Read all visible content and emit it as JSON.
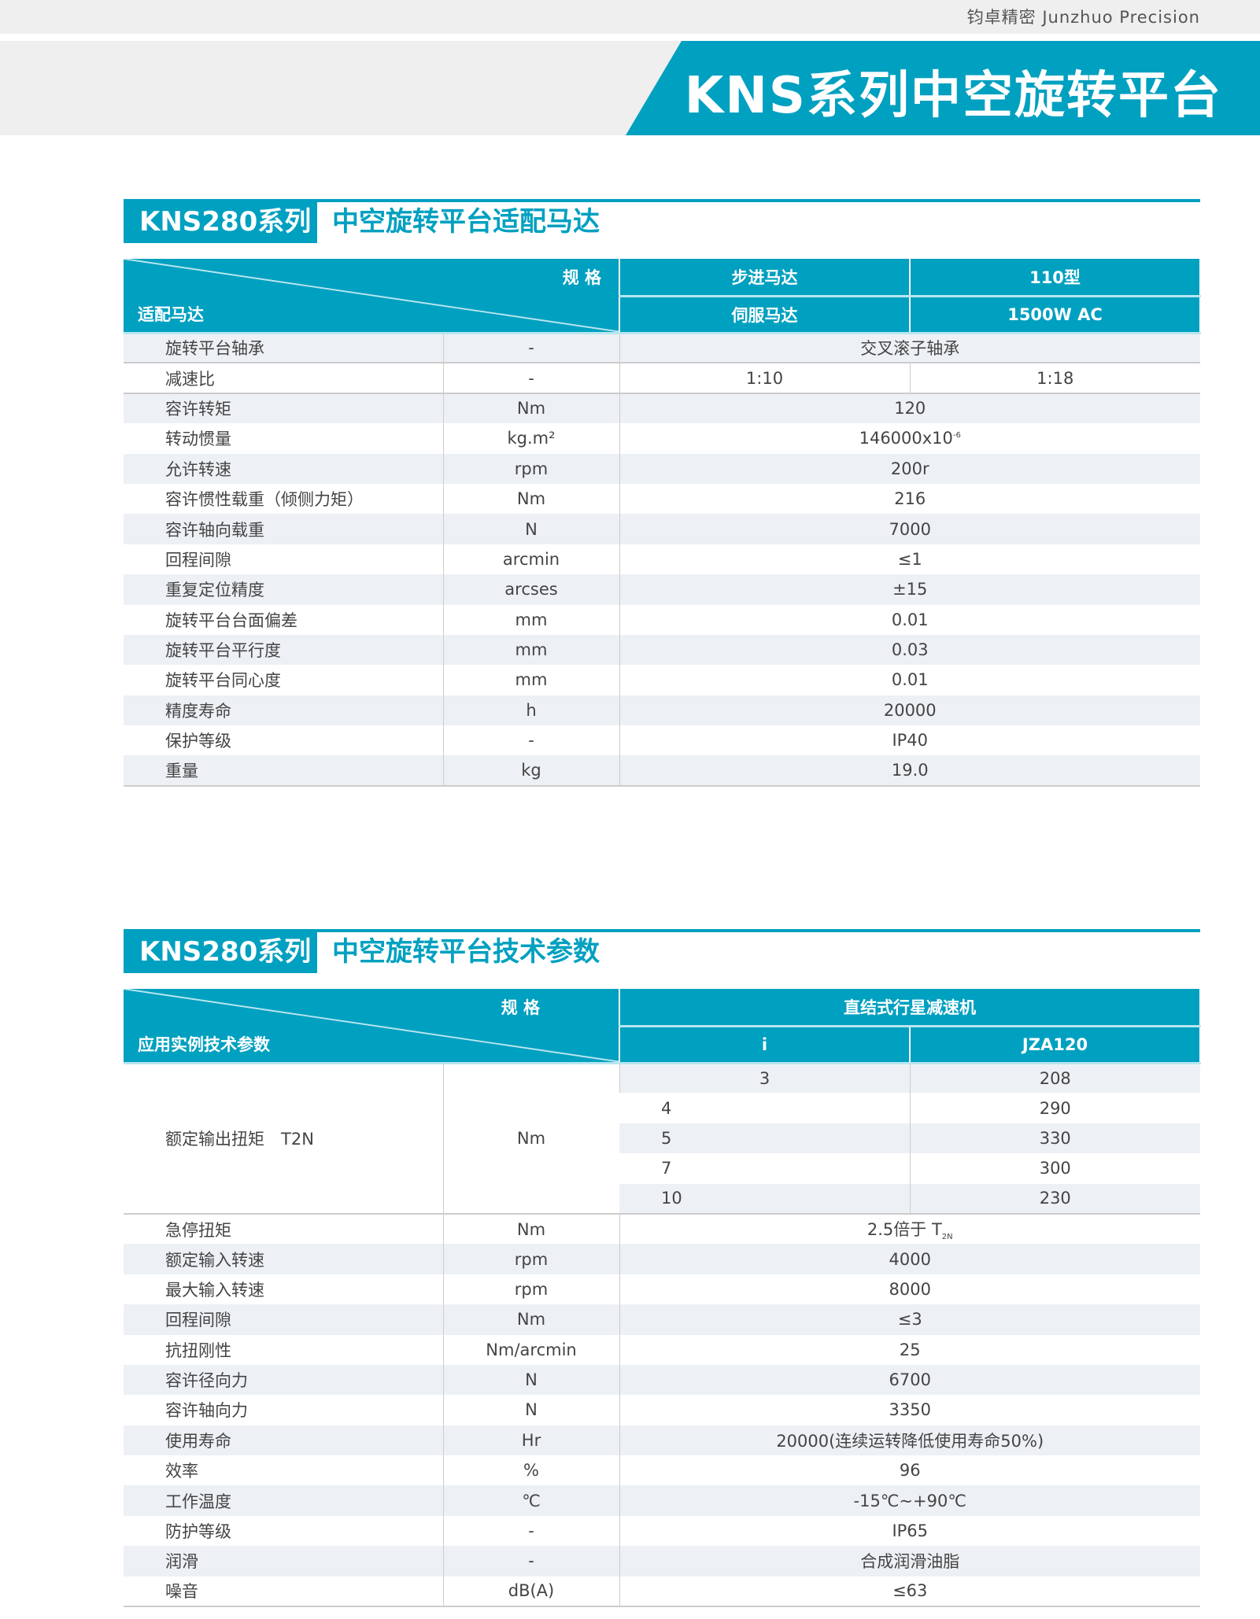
{
  "brand": "钧卓精密 Junzhuo Precision",
  "banner_title": "KNS系列中空旋转平台",
  "colors": {
    "accent": "#00a0c0",
    "stripe": "#edf1f5"
  },
  "motor": {
    "tag": "KNS280系列",
    "subtitle": "中空旋转平台适配马达",
    "header": {
      "spec": "规 格",
      "row_label": "适配马达",
      "c1r1": "步进马达",
      "c2r1": "110型",
      "c1r2": "伺服马达",
      "c2r2": "1500W AC"
    },
    "rows": [
      {
        "name": "旋转平台轴承",
        "unit": "-",
        "value": "交叉滚子轴承"
      },
      {
        "name": "减速比",
        "unit": "-",
        "v1": "1:10",
        "v2": "1:18"
      },
      {
        "name": "容许转矩",
        "unit": "Nm",
        "value": "120"
      },
      {
        "name": "转动惯量",
        "unit": "kg.m²",
        "value": "146000x10",
        "sup": "-6"
      },
      {
        "name": "允许转速",
        "unit": "rpm",
        "value": "200r"
      },
      {
        "name": "容许惯性载重（倾侧力矩）",
        "unit": "Nm",
        "value": "216"
      },
      {
        "name": "容许轴向载重",
        "unit": "N",
        "value": "7000"
      },
      {
        "name": "回程间隙",
        "unit": "arcmin",
        "value": "≤1"
      },
      {
        "name": "重复定位精度",
        "unit": "arcses",
        "value": "±15"
      },
      {
        "name": "旋转平台台面偏差",
        "unit": "mm",
        "value": "0.01"
      },
      {
        "name": "旋转平台平行度",
        "unit": "mm",
        "value": "0.03"
      },
      {
        "name": "旋转平台同心度",
        "unit": "mm",
        "value": "0.01"
      },
      {
        "name": "精度寿命",
        "unit": "h",
        "value": "20000"
      },
      {
        "name": "保护等级",
        "unit": "-",
        "value": "IP40"
      },
      {
        "name": "重量",
        "unit": "kg",
        "value": "19.0"
      }
    ]
  },
  "tech": {
    "tag": "KNS280系列",
    "subtitle": "中空旋转平台技术参数",
    "header": {
      "spec": "规 格",
      "row_label": "应用实例技术参数",
      "group": "直结式行星减速机",
      "c1": "i",
      "c2": "JZA120"
    },
    "torque": {
      "name": "额定输出扭矩　T2N",
      "unit": "Nm",
      "rows": [
        {
          "i": "3",
          "v": "208"
        },
        {
          "i": "4",
          "v": "290"
        },
        {
          "i": "5",
          "v": "330"
        },
        {
          "i": "7",
          "v": "300"
        },
        {
          "i": "10",
          "v": "230"
        }
      ]
    },
    "rows": [
      {
        "name": "急停扭矩",
        "unit": "Nm",
        "value": "2.5倍于 T",
        "sub": "2N"
      },
      {
        "name": "额定输入转速",
        "unit": "rpm",
        "value": "4000"
      },
      {
        "name": "最大输入转速",
        "unit": "rpm",
        "value": "8000"
      },
      {
        "name": "回程间隙",
        "unit": "Nm",
        "value": "≤3"
      },
      {
        "name": "抗扭刚性",
        "unit": "Nm/arcmin",
        "value": "25"
      },
      {
        "name": "容许径向力",
        "unit": "N",
        "value": "6700"
      },
      {
        "name": "容许轴向力",
        "unit": "N",
        "value": "3350"
      },
      {
        "name": "使用寿命",
        "unit": "Hr",
        "value": "20000(连续运转降低使用寿命50%)"
      },
      {
        "name": "效率",
        "unit": "%",
        "value": "96"
      },
      {
        "name": "工作温度",
        "unit": "℃",
        "value": "-15℃~+90℃"
      },
      {
        "name": "防护等级",
        "unit": "-",
        "value": "IP65"
      },
      {
        "name": "润滑",
        "unit": "-",
        "value": "合成润滑油脂"
      },
      {
        "name": "噪音",
        "unit": "dB(A)",
        "value": "≤63"
      }
    ]
  }
}
